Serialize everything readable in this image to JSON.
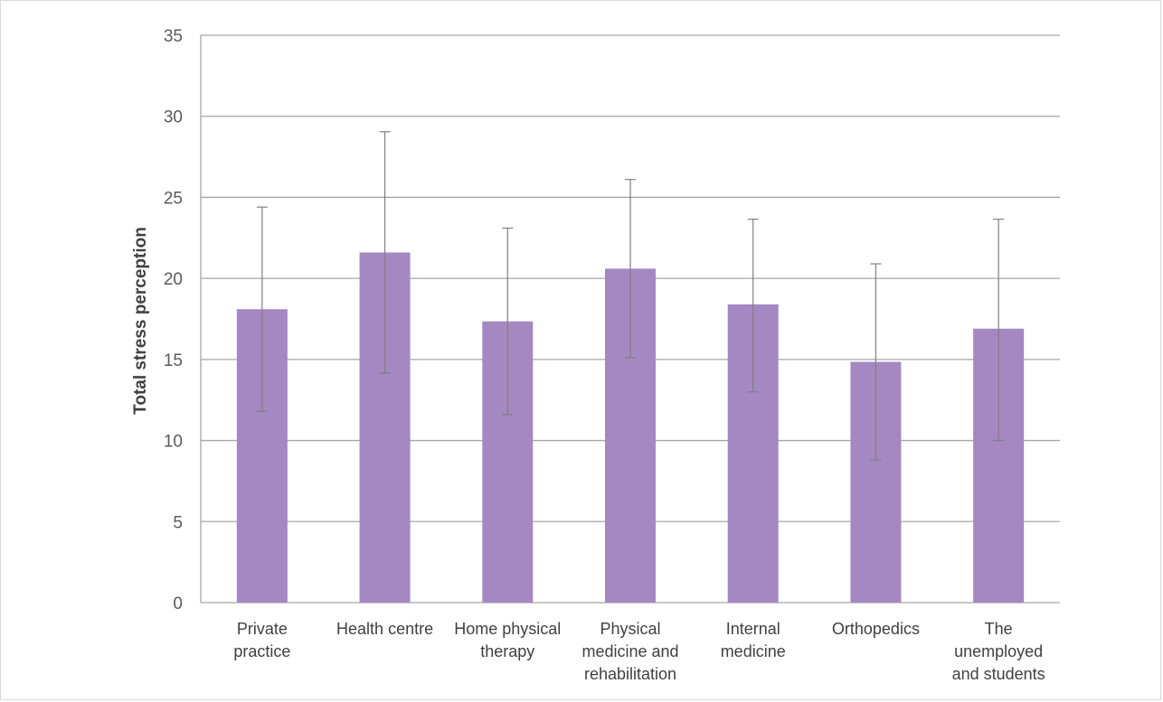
{
  "chart_data": {
    "type": "bar",
    "title": "",
    "xlabel": "",
    "ylabel": "Total stress perception",
    "ylim": [
      0,
      35
    ],
    "yticks": [
      0,
      5,
      10,
      15,
      20,
      25,
      30,
      35
    ],
    "grid": true,
    "legend": "none",
    "categories": [
      "Private practice",
      "Health centre",
      "Home physical therapy",
      "Physical medicine and rehabilitation",
      "Internal medicine",
      "Orthopedics",
      "The unemployed and students"
    ],
    "category_label_lines": [
      [
        "Private",
        "practice"
      ],
      [
        "Health centre"
      ],
      [
        "Home physical",
        "therapy"
      ],
      [
        "Physical",
        "medicine and",
        "rehabilitation"
      ],
      [
        "Internal",
        "medicine"
      ],
      [
        "Orthopedics"
      ],
      [
        "The",
        "unemployed",
        "and students"
      ]
    ],
    "values": [
      18.1,
      21.6,
      17.35,
      20.6,
      18.4,
      14.85,
      16.9
    ],
    "error_low": [
      11.8,
      14.15,
      11.6,
      15.1,
      13.0,
      8.8,
      10.0
    ],
    "error_high": [
      24.4,
      29.05,
      23.1,
      26.1,
      23.65,
      20.9,
      23.65
    ],
    "colors": {
      "bar": "#a588c1",
      "grid": "#a6a6a6",
      "error_bar": "#7f7f7f"
    }
  }
}
